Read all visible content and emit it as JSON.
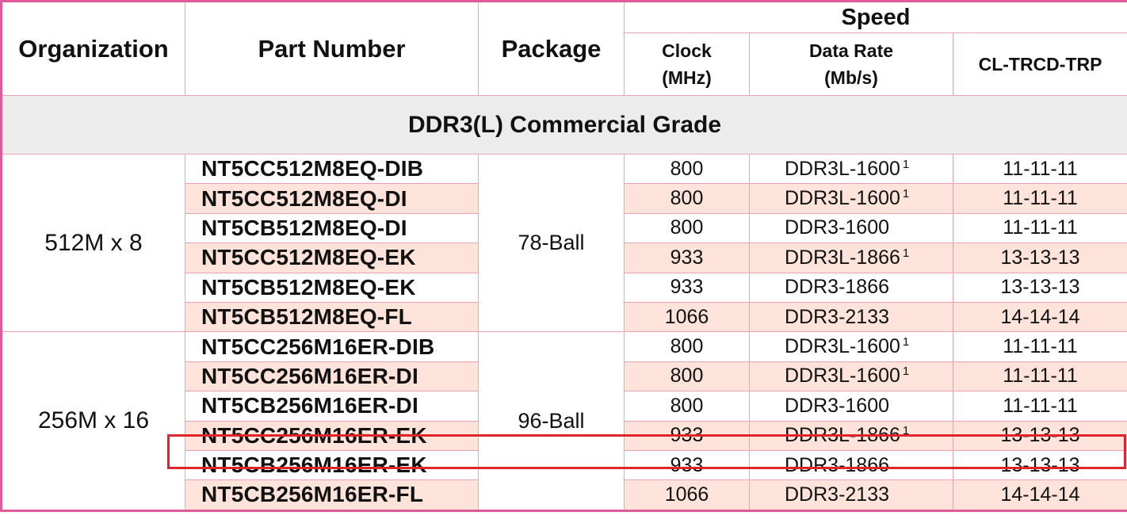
{
  "header": {
    "organization": "Organization",
    "part_number": "Part Number",
    "package": "Package",
    "speed": "Speed",
    "clock_line1": "Clock",
    "clock_line2": "(MHz)",
    "rate_line1": "Data Rate",
    "rate_line2": "(Mb/s)",
    "cl": "CL-TRCD-TRP"
  },
  "grade_title": "DDR3(L) Commercial Grade",
  "groups": [
    {
      "organization": "512M x 8",
      "package": "78-Ball",
      "rows": [
        {
          "part": "NT5CC512M8EQ-DIB",
          "clock": "800",
          "rate": "DDR3L-1600",
          "note": "1",
          "cl": "11-11-11"
        },
        {
          "part": "NT5CC512M8EQ-DI",
          "clock": "800",
          "rate": "DDR3L-1600",
          "note": "1",
          "cl": "11-11-11"
        },
        {
          "part": "NT5CB512M8EQ-DI",
          "clock": "800",
          "rate": "DDR3-1600",
          "note": "",
          "cl": "11-11-11"
        },
        {
          "part": "NT5CC512M8EQ-EK",
          "clock": "933",
          "rate": "DDR3L-1866",
          "note": "1",
          "cl": "13-13-13"
        },
        {
          "part": "NT5CB512M8EQ-EK",
          "clock": "933",
          "rate": "DDR3-1866",
          "note": "",
          "cl": "13-13-13"
        },
        {
          "part": "NT5CB512M8EQ-FL",
          "clock": "1066",
          "rate": "DDR3-2133",
          "note": "",
          "cl": "14-14-14"
        }
      ]
    },
    {
      "organization": "256M x 16",
      "package": "96-Ball",
      "rows": [
        {
          "part": "NT5CC256M16ER-DIB",
          "clock": "800",
          "rate": "DDR3L-1600",
          "note": "1",
          "cl": "11-11-11"
        },
        {
          "part": "NT5CC256M16ER-DI",
          "clock": "800",
          "rate": "DDR3L-1600",
          "note": "1",
          "cl": "11-11-11"
        },
        {
          "part": "NT5CB256M16ER-DI",
          "clock": "800",
          "rate": "DDR3-1600",
          "note": "",
          "cl": "11-11-11"
        },
        {
          "part": "NT5CC256M16ER-EK",
          "clock": "933",
          "rate": "DDR3L-1866",
          "note": "1",
          "cl": "13-13-13"
        },
        {
          "part": "NT5CB256M16ER-EK",
          "clock": "933",
          "rate": "DDR3-1866",
          "note": "",
          "cl": "13-13-13"
        },
        {
          "part": "NT5CB256M16ER-FL",
          "clock": "1066",
          "rate": "DDR3-2133",
          "note": "",
          "cl": "14-14-14"
        }
      ]
    }
  ],
  "colors": {
    "outer_border": "#e05a9a",
    "grid": "#e9a3b3",
    "row_shade": "#fde3d9",
    "grade_bg": "#ececec",
    "highlight": "#e0242b"
  }
}
